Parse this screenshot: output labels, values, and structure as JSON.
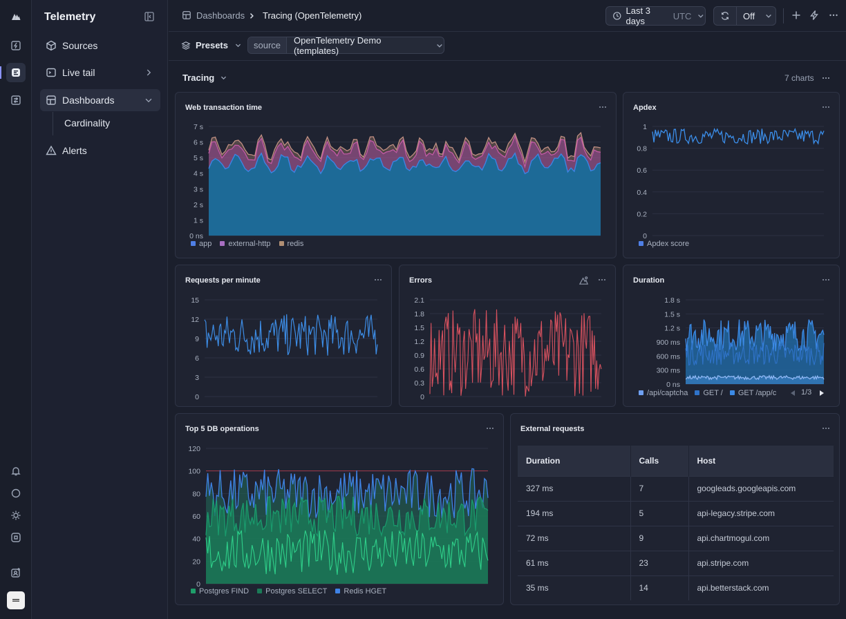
{
  "app": {
    "title": "Telemetry"
  },
  "nav": {
    "items": [
      {
        "label": "Sources"
      },
      {
        "label": "Live tail"
      },
      {
        "label": "Dashboards"
      },
      {
        "label": "Alerts"
      }
    ],
    "sub_items": [
      {
        "label": "Cardinality"
      }
    ]
  },
  "breadcrumb": {
    "root": "Dashboards",
    "current": "Tracing (OpenTelemetry)"
  },
  "time_range": {
    "label": "Last 3 days",
    "tz": "UTC"
  },
  "refresh": {
    "value": "Off"
  },
  "filters": {
    "presets_label": "Presets",
    "source_key": "source",
    "source_value": "OpenTelemetry Demo (templates)"
  },
  "section": {
    "title": "Tracing",
    "count": "7 charts"
  },
  "colors": {
    "app": "#2e7fbf",
    "external_http": "#c25aa5",
    "redis": "#b7806a",
    "apdex": "#3b8eea",
    "errors": "#e05563",
    "green": "#20c07a"
  },
  "charts": {
    "web": {
      "title": "Web transaction time",
      "ticks": [
        "7 s",
        "6 s",
        "5 s",
        "4 s",
        "3 s",
        "2 s",
        "1 s",
        "0 ns"
      ],
      "legend": [
        "app",
        "external-http",
        "redis"
      ]
    },
    "apdex": {
      "title": "Apdex",
      "ticks": [
        "1",
        "0.8",
        "0.6",
        "0.4",
        "0.2",
        "0"
      ],
      "legend": [
        "Apdex score"
      ]
    },
    "rpm": {
      "title": "Requests per minute",
      "ticks": [
        "15",
        "12",
        "9",
        "6",
        "3",
        "0"
      ]
    },
    "errors": {
      "title": "Errors",
      "ticks": [
        "2.1",
        "1.8",
        "1.5",
        "1.2",
        "0.9",
        "0.6",
        "0.3",
        "0"
      ]
    },
    "duration": {
      "title": "Duration",
      "ticks": [
        "1.8 s",
        "1.5 s",
        "1.2 s",
        "900 ms",
        "600 ms",
        "300 ms",
        "0 ns"
      ],
      "legend": [
        "/api/captcha",
        "GET /",
        "GET /app/c"
      ],
      "page": "1/3"
    },
    "db": {
      "title": "Top 5 DB operations",
      "ticks": [
        "120",
        "100",
        "80",
        "60",
        "40",
        "20",
        "0"
      ],
      "legend": [
        "Postgres FIND",
        "Postgres SELECT",
        "Redis HGET"
      ]
    }
  },
  "external": {
    "title": "External requests",
    "columns": [
      "Duration",
      "Calls",
      "Host"
    ],
    "rows": [
      [
        "327 ms",
        "7",
        "googleads.googleapis.com"
      ],
      [
        "194 ms",
        "5",
        "api-legacy.stripe.com"
      ],
      [
        "72 ms",
        "9",
        "api.chartmogul.com"
      ],
      [
        "61 ms",
        "23",
        "api.stripe.com"
      ],
      [
        "35 ms",
        "14",
        "api.betterstack.com"
      ]
    ]
  }
}
